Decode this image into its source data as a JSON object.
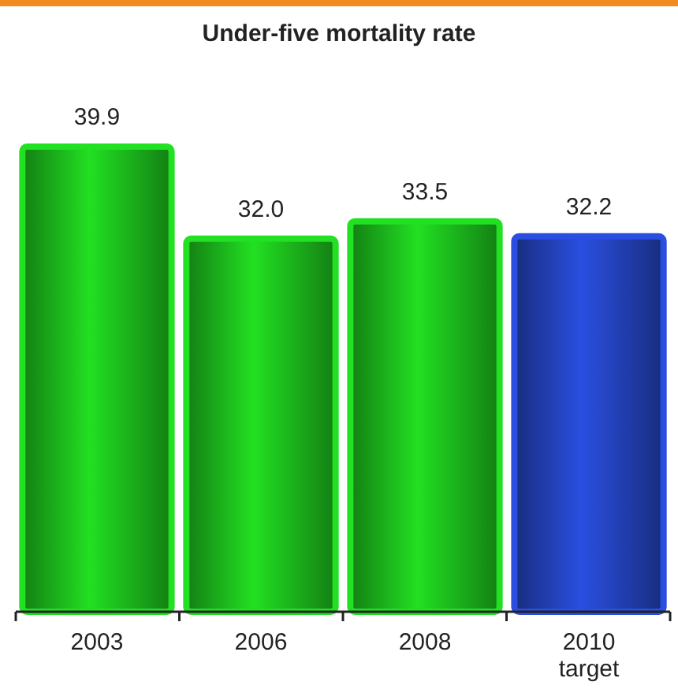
{
  "chart_data": {
    "type": "bar",
    "title": "Under-five mortality rate",
    "categories": [
      "2003",
      "2006",
      "2008",
      "2010 target"
    ],
    "values": [
      39.9,
      32.0,
      33.5,
      32.2
    ],
    "colors": [
      "#22e022",
      "#22e022",
      "#22e022",
      "#2a4fe0"
    ],
    "value_labels": [
      "39.9",
      "32.0",
      "33.5",
      "32.2"
    ]
  }
}
